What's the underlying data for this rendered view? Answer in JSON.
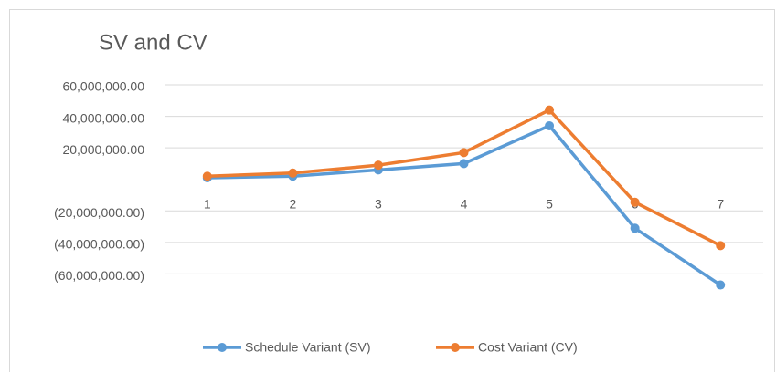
{
  "chart_data": {
    "type": "line",
    "title": "SV and CV",
    "categories": [
      "1",
      "2",
      "3",
      "4",
      "5",
      "6",
      "7"
    ],
    "series": [
      {
        "name": "Schedule Variant (SV)",
        "color": "#5b9bd5",
        "values": [
          1000000,
          2000000,
          6000000,
          10000000,
          34000000,
          -31000000,
          -67000000
        ]
      },
      {
        "name": "Cost Variant (CV)",
        "color": "#ed7d31",
        "values": [
          2000000,
          4000000,
          9000000,
          17000000,
          44000000,
          -14500000,
          -42000000
        ]
      }
    ],
    "ylim": [
      -80000000,
      60000000
    ],
    "yticks": [
      {
        "value": 60000000,
        "label": "60,000,000.00"
      },
      {
        "value": 40000000,
        "label": "40,000,000.00"
      },
      {
        "value": 20000000,
        "label": "20,000,000.00"
      },
      {
        "value": -20000000,
        "label": "(20,000,000.00)"
      },
      {
        "value": -40000000,
        "label": "(40,000,000.00)"
      },
      {
        "value": -60000000,
        "label": "(60,000,000.00)"
      }
    ],
    "grid": true,
    "legend": "bottom"
  }
}
